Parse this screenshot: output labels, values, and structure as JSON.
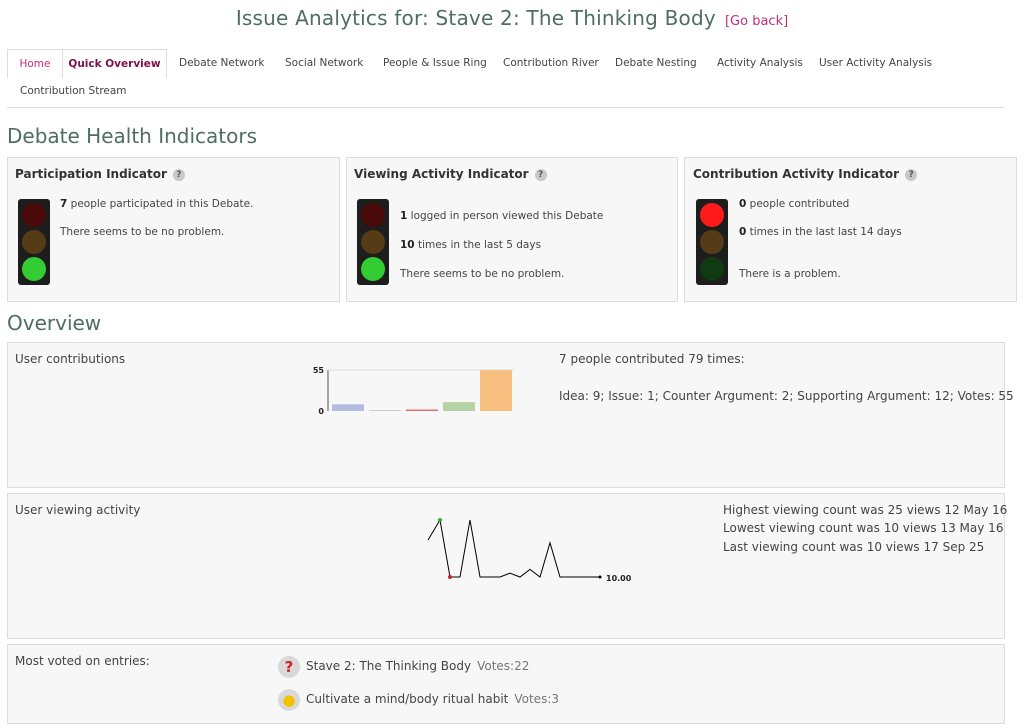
{
  "header": {
    "title": "Issue Analytics for: Stave 2: The Thinking Body",
    "go_back": "[Go back]"
  },
  "tabs": [
    {
      "label": "Home"
    },
    {
      "label": "Quick Overview"
    },
    {
      "label": "Debate Network"
    },
    {
      "label": "Social Network"
    },
    {
      "label": "People & Issue Ring"
    },
    {
      "label": "Contribution River"
    },
    {
      "label": "Debate Nesting"
    },
    {
      "label": "Activity Analysis"
    },
    {
      "label": "User Activity Analysis"
    },
    {
      "label": "Contribution Stream"
    }
  ],
  "health": {
    "heading": "Debate Health Indicators",
    "participation": {
      "title": "Participation Indicator",
      "count": "7",
      "line1_rest": " people participated in this Debate.",
      "status": "There seems to be no problem."
    },
    "viewing": {
      "title": "Viewing Activity Indicator",
      "count1": "1",
      "line1_rest": " logged in person viewed this Debate",
      "count2": "10",
      "line2_rest": " times in the last 5 days",
      "status": "There seems to be no problem."
    },
    "contribution": {
      "title": "Contribution Activity Indicator",
      "count1": "0",
      "line1_rest": " people contributed",
      "count2": "0",
      "line2_rest": " times in the last last 14 days",
      "status": "There is a problem."
    },
    "colors": {
      "red_on": "#ff1a1a",
      "red_off": "#4a0a0a",
      "amber_off": "#553c17",
      "green_on": "#33cc33",
      "green_off": "#0f3a12"
    }
  },
  "overview": {
    "heading": "Overview",
    "contributions": {
      "label": "User contributions",
      "summary": "7 people contributed 79 times:",
      "breakdown": "Idea: 9; Issue: 1; Counter Argument: 2; Supporting Argument: 12; Votes: 55"
    },
    "viewing": {
      "label": "User viewing activity",
      "highest": "Highest viewing count was 25 views 12 May 16",
      "lowest": "Lowest viewing count was 10 views 13 May 16",
      "last": "Last viewing count was 10 views 17 Sep 25"
    },
    "voted": {
      "label": "Most voted on entries:",
      "items": [
        {
          "title": "Stave 2: The Thinking Body",
          "votes": "Votes:22",
          "icon": "question-icon"
        },
        {
          "title": "Cultivate a mind/body ritual habit",
          "votes": "Votes:3",
          "icon": "lightbulb-icon"
        }
      ]
    }
  },
  "chart_data": [
    {
      "type": "bar",
      "categories": [
        "Idea",
        "Issue",
        "Counter Argument",
        "Supporting Argument",
        "Votes"
      ],
      "values": [
        9,
        1,
        2,
        12,
        55
      ],
      "colors": [
        "#b4bde0",
        "#cccccc",
        "#e07070",
        "#b6d3a6",
        "#f7c080"
      ],
      "ylim": [
        0,
        55
      ],
      "ytick_labels": [
        "0",
        "55"
      ]
    },
    {
      "type": "line",
      "values": [
        25,
        10,
        10,
        25,
        10,
        10,
        10,
        11,
        10,
        12,
        10,
        19,
        10,
        10,
        10,
        10,
        10
      ],
      "end_label": "10.00",
      "colors": {
        "line": "#000000",
        "max_marker": "#33aa33",
        "min_marker": "#cc2222",
        "last_marker": "#000000"
      }
    }
  ]
}
